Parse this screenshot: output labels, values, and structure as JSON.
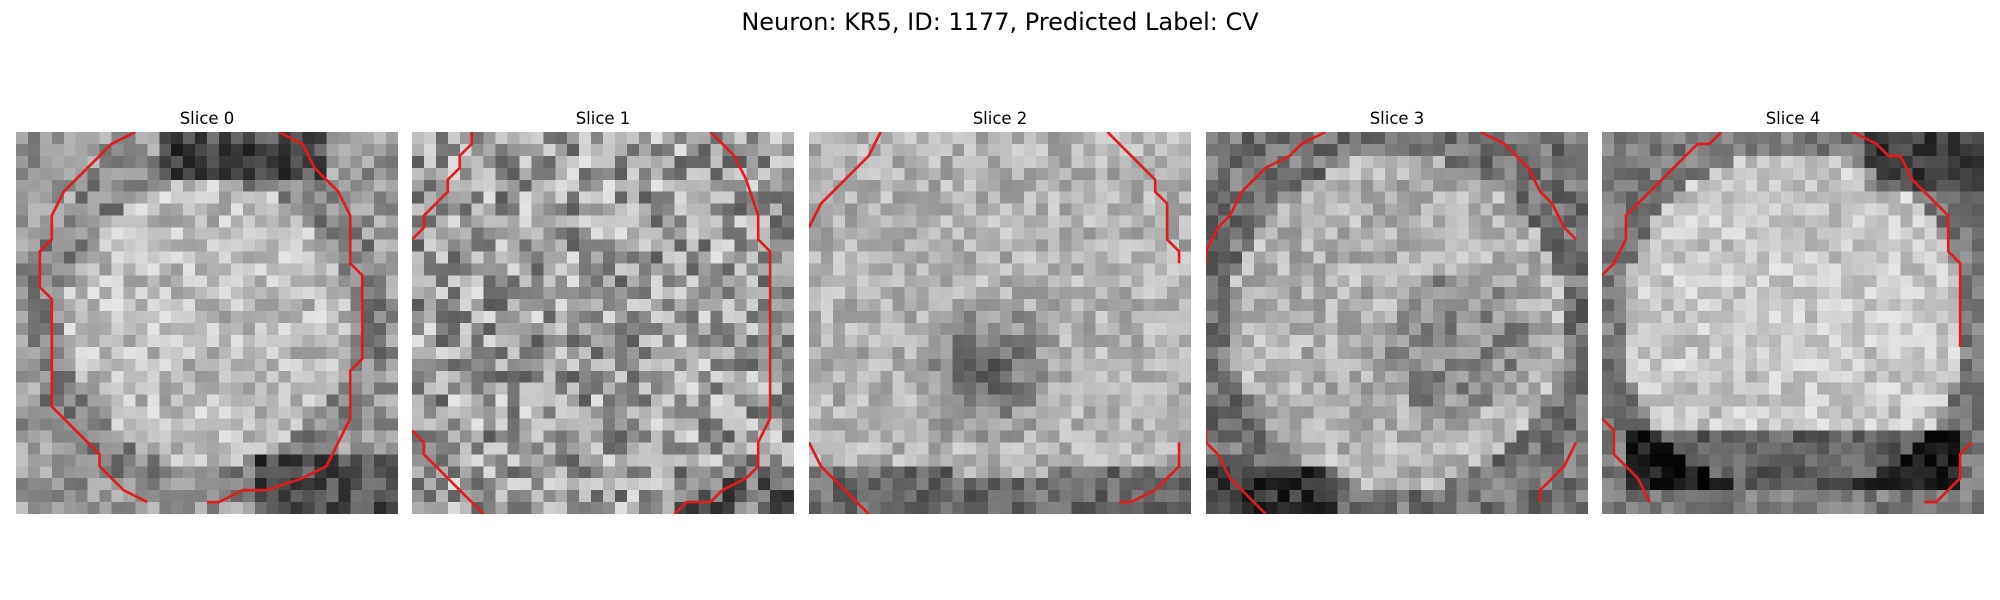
{
  "figure": {
    "title": "Neuron: KR5, ID: 1177, Predicted Label: CV"
  },
  "contour_color": "#e41a1c",
  "grid_size": 32,
  "slices": [
    {
      "label": "Slice 0",
      "mode": "bright-center",
      "contours": [
        [
          [
            10,
            0
          ],
          [
            8,
            1
          ],
          [
            6,
            3
          ],
          [
            4,
            5
          ],
          [
            3,
            7
          ],
          [
            3,
            9
          ],
          [
            2,
            10
          ],
          [
            2,
            13
          ],
          [
            3,
            14
          ],
          [
            3,
            23
          ],
          [
            5,
            25
          ],
          [
            7,
            27
          ],
          [
            7,
            28
          ],
          [
            9,
            30
          ],
          [
            11,
            31
          ]
        ],
        [
          [
            22,
            0
          ],
          [
            24,
            1
          ],
          [
            25,
            3
          ],
          [
            27,
            5
          ],
          [
            28,
            7
          ],
          [
            28,
            11
          ],
          [
            29,
            12
          ],
          [
            29,
            19
          ],
          [
            28,
            20
          ],
          [
            28,
            24
          ],
          [
            27,
            26
          ],
          [
            26,
            28
          ],
          [
            24,
            29
          ],
          [
            21,
            30
          ],
          [
            19,
            30
          ],
          [
            17,
            31
          ],
          [
            16,
            31
          ]
        ]
      ]
    },
    {
      "label": "Slice 1",
      "mode": "noise",
      "contours": [
        [
          [
            5,
            0
          ],
          [
            5,
            1
          ],
          [
            4,
            2
          ],
          [
            4,
            3
          ],
          [
            3,
            4
          ],
          [
            3,
            5
          ],
          [
            2,
            6
          ],
          [
            1,
            7
          ],
          [
            1,
            8
          ],
          [
            0,
            9
          ]
        ],
        [
          [
            25,
            0
          ],
          [
            27,
            2
          ],
          [
            28,
            4
          ],
          [
            29,
            7
          ],
          [
            29,
            9
          ],
          [
            30,
            10
          ],
          [
            30,
            24
          ],
          [
            29,
            26
          ],
          [
            29,
            28
          ],
          [
            28,
            29
          ],
          [
            26,
            30
          ],
          [
            25,
            31
          ],
          [
            23,
            31
          ],
          [
            22,
            32
          ]
        ],
        [
          [
            0,
            25
          ],
          [
            1,
            26
          ],
          [
            1,
            27
          ],
          [
            3,
            29
          ],
          [
            6,
            32
          ]
        ]
      ]
    },
    {
      "label": "Slice 2",
      "mode": "dark-center",
      "contours": [
        [
          [
            6,
            0
          ],
          [
            5,
            2
          ],
          [
            3,
            4
          ],
          [
            2,
            5
          ],
          [
            1,
            6
          ],
          [
            0,
            8
          ]
        ],
        [
          [
            25,
            0
          ],
          [
            27,
            2
          ],
          [
            29,
            4
          ],
          [
            29,
            5
          ],
          [
            30,
            6
          ],
          [
            30,
            9
          ],
          [
            31,
            10
          ],
          [
            31,
            11
          ]
        ],
        [
          [
            0,
            26
          ],
          [
            1,
            28
          ],
          [
            3,
            30
          ],
          [
            5,
            32
          ]
        ],
        [
          [
            31,
            26
          ],
          [
            31,
            28
          ],
          [
            29,
            30
          ],
          [
            27,
            31
          ],
          [
            26,
            31
          ]
        ]
      ]
    },
    {
      "label": "Slice 3",
      "mode": "flat-ring",
      "contours": [
        [
          [
            10,
            0
          ],
          [
            8,
            1
          ],
          [
            7,
            2
          ],
          [
            5,
            3
          ],
          [
            3,
            5
          ],
          [
            2,
            7
          ],
          [
            1,
            8
          ],
          [
            0,
            10
          ],
          [
            0,
            11
          ]
        ],
        [
          [
            23,
            0
          ],
          [
            25,
            1
          ],
          [
            27,
            3
          ],
          [
            28,
            5
          ],
          [
            29,
            6
          ],
          [
            30,
            8
          ],
          [
            31,
            9
          ]
        ],
        [
          [
            0,
            25
          ],
          [
            0,
            26
          ],
          [
            1,
            27
          ],
          [
            2,
            29
          ],
          [
            3,
            30
          ],
          [
            5,
            32
          ]
        ],
        [
          [
            31,
            26
          ],
          [
            30,
            28
          ],
          [
            29,
            29
          ],
          [
            28,
            30
          ],
          [
            28,
            31
          ]
        ]
      ]
    },
    {
      "label": "Slice 4",
      "mode": "bright-bottom-dark",
      "contours": [
        [
          [
            10,
            0
          ],
          [
            9,
            1
          ],
          [
            8,
            1
          ],
          [
            6,
            3
          ],
          [
            4,
            5
          ],
          [
            3,
            6
          ],
          [
            2,
            7
          ],
          [
            2,
            9
          ],
          [
            1,
            11
          ],
          [
            0,
            12
          ]
        ],
        [
          [
            21,
            0
          ],
          [
            23,
            1
          ],
          [
            24,
            2
          ],
          [
            25,
            2
          ],
          [
            26,
            4
          ],
          [
            27,
            5
          ],
          [
            28,
            6
          ],
          [
            29,
            7
          ],
          [
            29,
            10
          ],
          [
            30,
            11
          ],
          [
            30,
            18
          ]
        ],
        [
          [
            0,
            24
          ],
          [
            1,
            25
          ],
          [
            1,
            27
          ],
          [
            3,
            29
          ],
          [
            4,
            31
          ]
        ],
        [
          [
            31,
            26
          ],
          [
            30,
            27
          ],
          [
            30,
            29
          ],
          [
            28,
            31
          ],
          [
            27,
            31
          ]
        ]
      ]
    }
  ]
}
